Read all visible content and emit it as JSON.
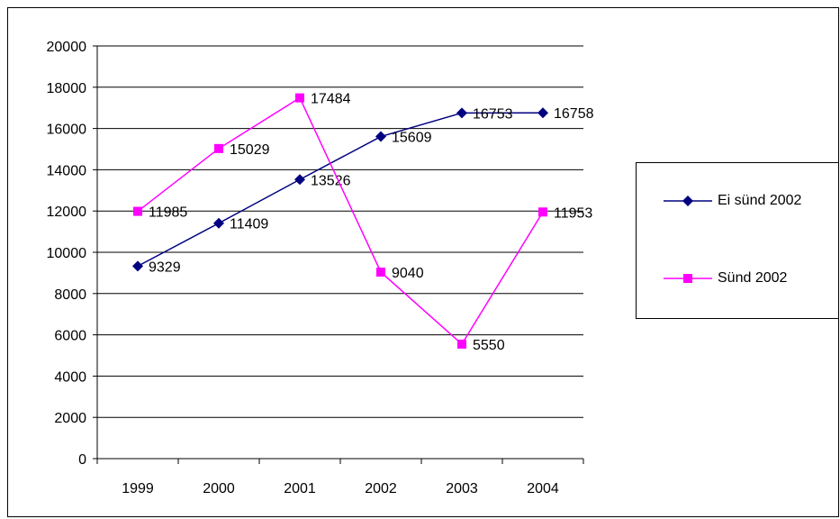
{
  "chart_data": {
    "type": "line",
    "title": "",
    "xlabel": "",
    "ylabel": "",
    "categories": [
      "1999",
      "2000",
      "2001",
      "2002",
      "2003",
      "2004"
    ],
    "ylim": [
      0,
      20000
    ],
    "yticks": [
      "0",
      "2000",
      "4000",
      "6000",
      "8000",
      "10000",
      "12000",
      "14000",
      "16000",
      "18000",
      "20000"
    ],
    "grid": true,
    "legend_position": "right",
    "series": [
      {
        "name": "Ei sünd 2002",
        "color": "#000080",
        "marker": "diamond",
        "values": [
          9329,
          11409,
          13526,
          15609,
          16753,
          16758
        ],
        "labels": [
          "9329",
          "11409",
          "13526",
          "15609",
          "16753",
          "16758"
        ]
      },
      {
        "name": "Sünd 2002",
        "color": "#ff00ff",
        "marker": "square",
        "values": [
          11985,
          15029,
          17484,
          9040,
          5550,
          11953
        ],
        "labels": [
          "11985",
          "15029",
          "17484",
          "9040",
          "5550",
          "11953"
        ]
      }
    ]
  }
}
